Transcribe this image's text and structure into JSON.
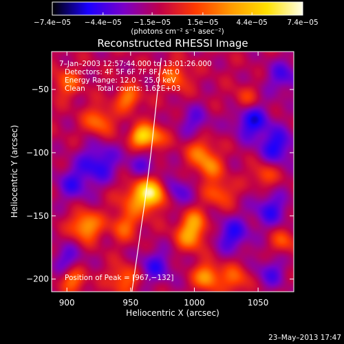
{
  "colors": {
    "background": "#000000",
    "foreground": "#ffffff",
    "limb": "#ffffff",
    "palette": [
      "#000000",
      "#1a00ff",
      "#7a00c8",
      "#c0004a",
      "#ff3a00",
      "#ff9a00",
      "#ffe000",
      "#ffffe8"
    ]
  },
  "chart_data": {
    "type": "heatmap",
    "title": "Reconstructed RHESSI Image",
    "xlabel": "Heliocentric X (arcsec)",
    "ylabel": "Heliocentric Y (arcsec)",
    "xlim": [
      888,
      1078
    ],
    "ylim": [
      -210,
      -20
    ],
    "x_ticks": [
      900,
      950,
      1000,
      1050
    ],
    "y_ticks": [
      -200,
      -150,
      -100,
      -50
    ],
    "x_tick_labels": [
      "900",
      "950",
      "1000",
      "1050"
    ],
    "y_tick_labels": [
      "−200",
      "−150",
      "−100",
      "−50"
    ],
    "colorbar": {
      "min": -7.4e-05,
      "max": 7.4e-05,
      "tick_values": [
        -7.4e-05,
        -4.4e-05,
        -1.5e-05,
        1.5e-05,
        4.4e-05,
        7.4e-05
      ],
      "tick_labels": [
        "−7.4e−05",
        "−4.4e−05",
        "−1.5e−05",
        "1.5e−05",
        "4.4e−05",
        "7.4e−05"
      ],
      "unit_label": "(photons cm⁻² s⁻¹ asec⁻²)"
    },
    "annotations": {
      "time_range": "7–Jan–2003 12:57:44.000 to 13:01:26.000",
      "detectors": "Detectors: 4F 5F 6F 7F 8F, Att 0",
      "energy_range": "Energy Range: 12.0 – 25.0 keV",
      "clean_counts": "Clean     Total counts: 1.62E+03",
      "peak": "Position of Peak = [967,−132]"
    },
    "peak_position": [
      967,
      -132
    ],
    "sources": [
      {
        "x": 967,
        "y": -132,
        "amp": 6.6e-05,
        "sigma": 8
      },
      {
        "x": 955,
        "y": -136,
        "amp": 3e-05,
        "sigma": 10
      },
      {
        "x": 958,
        "y": -87,
        "amp": 5.2e-05,
        "sigma": 6
      },
      {
        "x": 968,
        "y": -88,
        "amp": 3.5e-05,
        "sigma": 7
      },
      {
        "x": 1005,
        "y": -100,
        "amp": 3.2e-05,
        "sigma": 8
      },
      {
        "x": 1012,
        "y": -112,
        "amp": 3e-05,
        "sigma": 7
      },
      {
        "x": 915,
        "y": -158,
        "amp": 4.8e-05,
        "sigma": 8
      },
      {
        "x": 945,
        "y": -158,
        "amp": 2.8e-05,
        "sigma": 8
      },
      {
        "x": 997,
        "y": -166,
        "amp": 4.2e-05,
        "sigma": 8
      },
      {
        "x": 1000,
        "y": -154,
        "amp": 3e-05,
        "sigma": 7
      },
      {
        "x": 1010,
        "y": -198,
        "amp": 4.6e-05,
        "sigma": 7
      },
      {
        "x": 1032,
        "y": -200,
        "amp": 2.9e-05,
        "sigma": 8
      },
      {
        "x": 905,
        "y": -200,
        "amp": 3.6e-05,
        "sigma": 7
      },
      {
        "x": 945,
        "y": -200,
        "amp": 3.2e-05,
        "sigma": 8
      },
      {
        "x": 1020,
        "y": -132,
        "amp": 2.8e-05,
        "sigma": 8
      },
      {
        "x": 925,
        "y": -75,
        "amp": 3.4e-05,
        "sigma": 8
      },
      {
        "x": 948,
        "y": -57,
        "amp": 3.6e-05,
        "sigma": 7
      },
      {
        "x": 985,
        "y": -40,
        "amp": 3.1e-05,
        "sigma": 8
      },
      {
        "x": 900,
        "y": -45,
        "amp": 2.8e-05,
        "sigma": 8
      },
      {
        "x": 1055,
        "y": -118,
        "amp": 2.6e-05,
        "sigma": 7
      },
      {
        "x": 1070,
        "y": -170,
        "amp": 2.5e-05,
        "sigma": 7
      },
      {
        "x": 1040,
        "y": -58,
        "amp": 2.2e-05,
        "sigma": 7
      },
      {
        "x": 1045,
        "y": -75,
        "amp": -4e-05,
        "sigma": 10
      },
      {
        "x": 1065,
        "y": -95,
        "amp": -3.8e-05,
        "sigma": 10
      },
      {
        "x": 925,
        "y": -108,
        "amp": -3.6e-05,
        "sigma": 11
      },
      {
        "x": 1030,
        "y": -165,
        "amp": -3.5e-05,
        "sigma": 10
      },
      {
        "x": 905,
        "y": -125,
        "amp": -2.8e-05,
        "sigma": 10
      },
      {
        "x": 1060,
        "y": -145,
        "amp": -3.2e-05,
        "sigma": 10
      },
      {
        "x": 985,
        "y": -130,
        "amp": -2.8e-05,
        "sigma": 9
      },
      {
        "x": 970,
        "y": -190,
        "amp": -3e-05,
        "sigma": 10
      },
      {
        "x": 900,
        "y": -185,
        "amp": -2.6e-05,
        "sigma": 9
      },
      {
        "x": 1060,
        "y": -195,
        "amp": -2.6e-05,
        "sigma": 9
      },
      {
        "x": 960,
        "y": -110,
        "amp": -2.2e-05,
        "sigma": 9
      },
      {
        "x": 1070,
        "y": -40,
        "amp": -2.8e-05,
        "sigma": 10
      },
      {
        "x": 1000,
        "y": -75,
        "amp": -2.4e-05,
        "sigma": 9
      }
    ],
    "limb_curve": [
      [
        974,
        -25
      ],
      [
        970,
        -62
      ],
      [
        966,
        -100
      ],
      [
        961,
        -140
      ],
      [
        956,
        -175
      ],
      [
        951,
        -210
      ]
    ]
  },
  "footer": {
    "timestamp": "23–May–2013 17:47"
  }
}
